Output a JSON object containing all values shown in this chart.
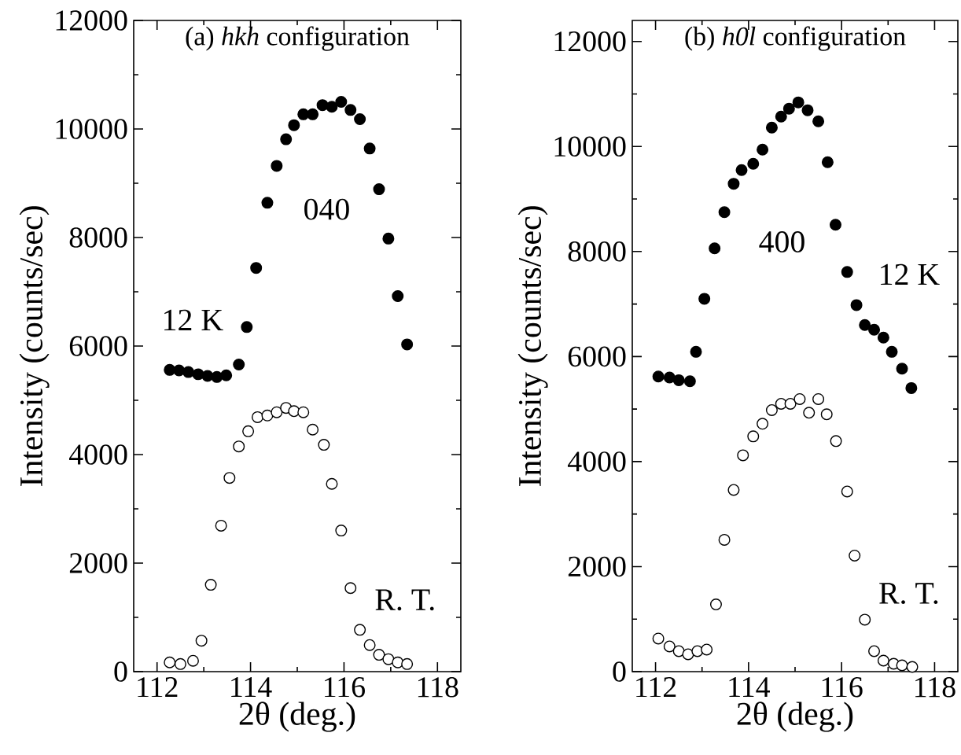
{
  "chart_data": [
    {
      "type": "scatter",
      "title": "(a) *hkh* configuration",
      "xlabel": "2θ (deg.)",
      "ylabel": "Intensity (counts/sec)",
      "xlim": [
        111.5,
        118.5
      ],
      "xticks": [
        112,
        114,
        116,
        118
      ],
      "ylim": [
        0,
        12000
      ],
      "yticks": [
        0,
        2000,
        4000,
        6000,
        8000,
        10000,
        12000
      ],
      "marker": "circle",
      "grid": false,
      "series": [
        {
          "color": "#000000",
          "x": [
            112.27,
            112.47,
            112.67,
            112.88,
            113.08,
            113.28,
            113.48,
            113.75,
            113.92,
            114.12,
            114.36,
            114.56,
            114.76,
            114.93,
            115.13,
            115.33,
            115.54,
            115.74,
            115.94,
            116.14,
            116.34,
            116.55,
            116.75,
            116.95,
            117.15,
            117.35
          ],
          "values": [
            5560,
            5550,
            5520,
            5480,
            5450,
            5430,
            5460,
            5660,
            6350,
            7440,
            8640,
            9320,
            9810,
            10070,
            10270,
            10270,
            10440,
            10410,
            10500,
            10350,
            10180,
            9640,
            8890,
            7980,
            6920,
            6030
          ]
        },
        {
          "color": "#ffffff",
          "x": [
            112.27,
            112.5,
            112.77,
            112.95,
            113.15,
            113.37,
            113.55,
            113.75,
            113.95,
            114.15,
            114.36,
            114.56,
            114.76,
            114.93,
            115.13,
            115.33,
            115.57,
            115.74,
            115.94,
            116.14,
            116.34,
            116.55,
            116.75,
            116.95,
            117.15,
            117.35
          ],
          "values": [
            170,
            140,
            200,
            570,
            1600,
            2690,
            3570,
            4150,
            4430,
            4690,
            4720,
            4780,
            4860,
            4800,
            4780,
            4460,
            4180,
            3460,
            2600,
            1540,
            770,
            490,
            310,
            230,
            170,
            140
          ]
        }
      ],
      "annotations": [
        "040",
        "12 K",
        "R. T."
      ]
    },
    {
      "type": "scatter",
      "title": "(b) *h0l* configuration",
      "xlabel": "2θ (deg.)",
      "ylabel": "Intensity (counts/sec)",
      "xlim": [
        111.5,
        118.5
      ],
      "xticks": [
        112,
        114,
        116,
        118
      ],
      "ylim": [
        0,
        12400
      ],
      "yticks": [
        0,
        2000,
        4000,
        6000,
        8000,
        10000,
        12000
      ],
      "marker": "circle",
      "grid": false,
      "series": [
        {
          "color": "#000000",
          "x": [
            112.06,
            112.3,
            112.5,
            112.74,
            112.87,
            113.05,
            113.27,
            113.48,
            113.68,
            113.85,
            114.1,
            114.3,
            114.5,
            114.7,
            114.87,
            115.07,
            115.27,
            115.5,
            115.7,
            115.87,
            116.12,
            116.32,
            116.5,
            116.7,
            116.9,
            117.08,
            117.3,
            117.5
          ],
          "values": [
            5620,
            5600,
            5550,
            5530,
            6090,
            7100,
            8060,
            8750,
            9290,
            9550,
            9670,
            9940,
            10360,
            10570,
            10720,
            10840,
            10690,
            10480,
            9700,
            8510,
            7610,
            6980,
            6600,
            6510,
            6360,
            6090,
            5770,
            5400
          ]
        },
        {
          "color": "#ffffff",
          "x": [
            112.06,
            112.3,
            112.5,
            112.7,
            112.9,
            113.1,
            113.3,
            113.48,
            113.68,
            113.88,
            114.1,
            114.3,
            114.5,
            114.7,
            114.9,
            115.1,
            115.3,
            115.5,
            115.68,
            115.88,
            116.12,
            116.28,
            116.5,
            116.7,
            116.9,
            117.12,
            117.3,
            117.52
          ],
          "values": [
            630,
            480,
            390,
            330,
            390,
            420,
            1280,
            2510,
            3460,
            4120,
            4480,
            4720,
            4980,
            5100,
            5100,
            5190,
            4930,
            5190,
            4900,
            4390,
            3430,
            2210,
            990,
            390,
            210,
            150,
            120,
            90
          ]
        }
      ],
      "annotations": [
        "400",
        "12 K",
        "R. T."
      ]
    }
  ]
}
